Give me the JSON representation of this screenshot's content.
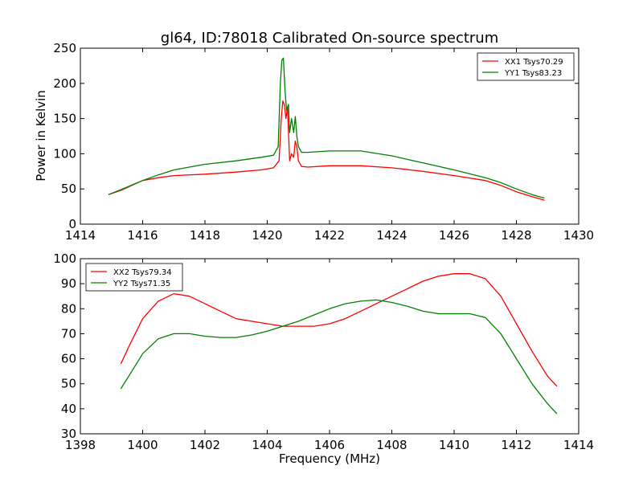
{
  "chart_data": [
    {
      "type": "line",
      "title": "gl64, ID:78018 Calibrated On-source spectrum",
      "xlabel": "",
      "ylabel": "Power in Kelvin",
      "xlim": [
        1414,
        1430
      ],
      "ylim": [
        0,
        250
      ],
      "xticks": [
        "1414",
        "1416",
        "1418",
        "1420",
        "1422",
        "1424",
        "1426",
        "1428",
        "1430"
      ],
      "yticks": [
        "0",
        "50",
        "100",
        "150",
        "200",
        "250"
      ],
      "grid": false,
      "legend_position": "top-right",
      "series": [
        {
          "name": "XX1 Tsys70.29",
          "color": "#ff0000",
          "x": [
            1414.9,
            1415.3,
            1416.0,
            1416.5,
            1417.0,
            1418.0,
            1419.0,
            1419.8,
            1420.2,
            1420.38,
            1420.45,
            1420.5,
            1420.55,
            1420.6,
            1420.65,
            1420.72,
            1420.78,
            1420.85,
            1420.9,
            1420.95,
            1421.0,
            1421.1,
            1421.3,
            1422.0,
            1423.0,
            1424.0,
            1425.0,
            1426.0,
            1427.0,
            1427.5,
            1428.0,
            1428.5,
            1428.9
          ],
          "y": [
            42,
            48,
            62,
            66,
            69,
            71,
            74,
            77,
            80,
            90,
            150,
            175,
            170,
            150,
            165,
            90,
            100,
            95,
            118,
            110,
            90,
            82,
            81,
            83,
            83,
            80,
            75,
            69,
            62,
            55,
            46,
            39,
            34
          ]
        },
        {
          "name": "YY1 Tsys83.23",
          "color": "#008000",
          "x": [
            1414.9,
            1415.3,
            1416.0,
            1416.5,
            1417.0,
            1418.0,
            1419.0,
            1419.8,
            1420.2,
            1420.35,
            1420.42,
            1420.47,
            1420.52,
            1420.57,
            1420.62,
            1420.68,
            1420.72,
            1420.78,
            1420.85,
            1420.9,
            1420.95,
            1421.0,
            1421.1,
            1421.3,
            1422.0,
            1423.0,
            1424.0,
            1425.0,
            1426.0,
            1427.0,
            1427.5,
            1428.0,
            1428.5,
            1428.9
          ],
          "y": [
            42,
            49,
            62,
            70,
            77,
            85,
            90,
            95,
            98,
            110,
            200,
            233,
            236,
            190,
            162,
            170,
            130,
            150,
            130,
            153,
            125,
            110,
            102,
            102,
            104,
            104,
            97,
            87,
            77,
            66,
            59,
            50,
            42,
            37
          ]
        }
      ]
    },
    {
      "type": "line",
      "title": "",
      "xlabel": "Frequency (MHz)",
      "ylabel": "",
      "xlim": [
        1398,
        1414
      ],
      "ylim": [
        30,
        100
      ],
      "xticks": [
        "1398",
        "1400",
        "1402",
        "1404",
        "1406",
        "1408",
        "1410",
        "1412",
        "1414"
      ],
      "yticks": [
        "30",
        "40",
        "50",
        "60",
        "70",
        "80",
        "90",
        "100"
      ],
      "grid": false,
      "legend_position": "top-left",
      "series": [
        {
          "name": "XX2 Tsys79.34",
          "color": "#ff0000",
          "x": [
            1399.3,
            1399.6,
            1400.0,
            1400.5,
            1401.0,
            1401.5,
            1402.0,
            1402.5,
            1403.0,
            1403.5,
            1404.0,
            1404.5,
            1405.0,
            1405.5,
            1406.0,
            1406.5,
            1407.0,
            1407.5,
            1408.0,
            1408.5,
            1409.0,
            1409.5,
            1410.0,
            1410.5,
            1411.0,
            1411.5,
            1412.0,
            1412.5,
            1413.0,
            1413.3
          ],
          "y": [
            58,
            66,
            76,
            83,
            86,
            85,
            82,
            79,
            76,
            75,
            74,
            73,
            73,
            73,
            74,
            76,
            79,
            82,
            85,
            88,
            91,
            93,
            94,
            94,
            92,
            85,
            74,
            63,
            53,
            49
          ]
        },
        {
          "name": "YY2 Tsys71.35",
          "color": "#008000",
          "x": [
            1399.3,
            1399.6,
            1400.0,
            1400.5,
            1401.0,
            1401.5,
            1402.0,
            1402.5,
            1403.0,
            1403.5,
            1404.0,
            1404.5,
            1405.0,
            1405.5,
            1406.0,
            1406.5,
            1407.0,
            1407.5,
            1408.0,
            1408.5,
            1409.0,
            1409.5,
            1410.0,
            1410.5,
            1411.0,
            1411.5,
            1412.0,
            1412.5,
            1413.0,
            1413.3
          ],
          "y": [
            48,
            54,
            62,
            68,
            70,
            70,
            69,
            68.5,
            68.5,
            69.5,
            71,
            73,
            75,
            77.5,
            80,
            82,
            83,
            83.5,
            82.5,
            81,
            79,
            78,
            78,
            78,
            76.5,
            70,
            60,
            50,
            42,
            38
          ]
        }
      ]
    }
  ]
}
